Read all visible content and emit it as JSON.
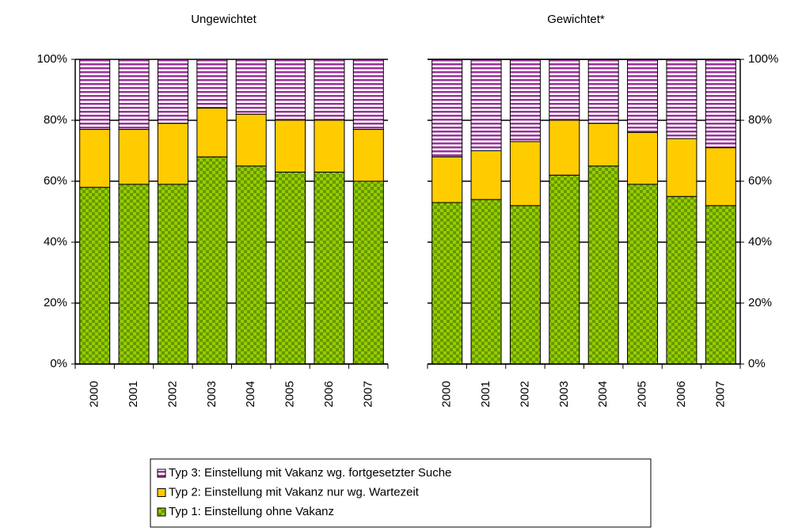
{
  "chart_data": [
    {
      "type": "stacked_bar",
      "title": "Ungewichtet",
      "axis_side": "left",
      "categories": [
        "2000",
        "2001",
        "2002",
        "2003",
        "2004",
        "2005",
        "2006",
        "2007"
      ],
      "series": [
        {
          "name": "Typ 1: Einstellung ohne Vakanz",
          "color": "#669900",
          "pattern": "checker",
          "values": [
            58,
            59,
            59,
            68,
            65,
            63,
            63,
            60
          ]
        },
        {
          "name": "Typ 2: Einstellung mit Vakanz nur wg. Wartezeit",
          "color": "#ffcc00",
          "pattern": "solid",
          "values": [
            19,
            18,
            20,
            16,
            17,
            17,
            17,
            17
          ]
        },
        {
          "name": "Typ 3: Einstellung mit Vakanz wg. fortgesetzter Suche",
          "color": "#993399",
          "pattern": "stripes",
          "values": [
            23,
            23,
            21,
            16,
            18,
            20,
            20,
            23
          ]
        }
      ],
      "ylim": [
        0,
        100
      ],
      "yticks": [
        {
          "value": 0,
          "label": "0%"
        },
        {
          "value": 20,
          "label": "20%"
        },
        {
          "value": 40,
          "label": "40%"
        },
        {
          "value": 60,
          "label": "60%"
        },
        {
          "value": 80,
          "label": "80%"
        },
        {
          "value": 100,
          "label": "100%"
        }
      ],
      "grid": true
    },
    {
      "type": "stacked_bar",
      "title": "Gewichtet*",
      "axis_side": "right",
      "categories": [
        "2000",
        "2001",
        "2002",
        "2003",
        "2004",
        "2005",
        "2006",
        "2007"
      ],
      "series": [
        {
          "color": "#669900",
          "pattern": "checker",
          "values": [
            53,
            54,
            52,
            62,
            65,
            59,
            55,
            52
          ]
        },
        {
          "color": "#ffcc00",
          "pattern": "solid",
          "values": [
            15,
            16,
            21,
            18,
            14,
            17,
            19,
            19
          ]
        },
        {
          "color": "#993399",
          "pattern": "stripes",
          "values": [
            32,
            30,
            27,
            20,
            21,
            24,
            26,
            29
          ]
        }
      ],
      "ylim": [
        0,
        100
      ],
      "yticks": [
        {
          "value": 0,
          "label": "0%"
        },
        {
          "value": 20,
          "label": "20%"
        },
        {
          "value": 40,
          "label": "40%"
        },
        {
          "value": 60,
          "label": "60%"
        },
        {
          "value": 80,
          "label": "80%"
        },
        {
          "value": 100,
          "label": "100%"
        }
      ],
      "grid": true
    }
  ]
}
